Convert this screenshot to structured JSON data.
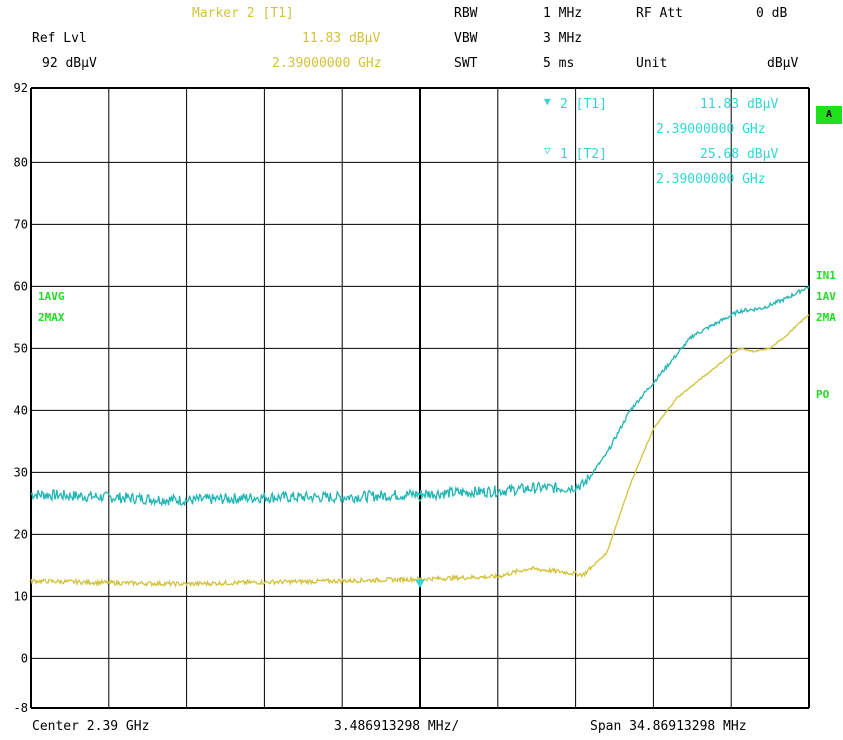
{
  "header": {
    "marker_title": "Marker 2 [T1]",
    "ref_lvl_label": "Ref Lvl",
    "ref_lvl_value": "92 dBµV",
    "marker_level": "11.83 dBµV",
    "marker_freq": "2.39000000 GHz",
    "rbw_label": "RBW",
    "rbw_value": "1 MHz",
    "vbw_label": "VBW",
    "vbw_value": "3 MHz",
    "swt_label": "SWT",
    "swt_value": "5 ms",
    "rfatt_label": "RF Att",
    "rfatt_value": "0 dB",
    "unit_label": "Unit",
    "unit_value": "dBµV"
  },
  "markers": {
    "m2_label": "2 [T1]",
    "m2_level": "11.83 dBµV",
    "m2_freq": "2.39000000 GHz",
    "m1_label": "1 [T2]",
    "m1_level": "25.68 dBµV",
    "m1_freq": "2.39000000 GHz"
  },
  "left_labels": {
    "trace1": "1AVG",
    "trace2": "2MAX"
  },
  "right_labels": {
    "badge": "A",
    "in1": "IN1",
    "av": "1AV",
    "ma": "2MA",
    "po": "PO"
  },
  "footer": {
    "center": "Center 2.39 GHz",
    "per_div": "3.486913298 MHz/",
    "span": "Span 34.86913298 MHz"
  },
  "colors": {
    "trace_max": "#22b5b5",
    "trace_avg": "#d2c23c",
    "grid": "#000000"
  },
  "chart_data": {
    "type": "line",
    "xlabel": "",
    "ylabel": "",
    "xlim": [
      0,
      10
    ],
    "ylim": [
      -8,
      92
    ],
    "yticks": [
      92,
      80,
      70,
      60,
      50,
      40,
      30,
      20,
      10,
      0,
      -8
    ],
    "series": [
      {
        "name": "2MAX",
        "x": [
          0,
          1,
          2,
          3,
          4,
          5,
          6,
          6.5,
          6.9,
          7.1,
          7.4,
          7.7,
          8.0,
          8.3,
          8.5,
          8.8,
          9.1,
          9.4,
          9.7,
          10
        ],
        "y": [
          26.5,
          26,
          25.5,
          26,
          26,
          26.5,
          27,
          27.5,
          27.5,
          28,
          33,
          40,
          44.5,
          49,
          52,
          54,
          56,
          56.5,
          58,
          60
        ],
        "noise": 0.9
      },
      {
        "name": "1AVG",
        "x": [
          0,
          1,
          2,
          3,
          4,
          5,
          6,
          6.4,
          6.8,
          7.1,
          7.4,
          7.7,
          8.0,
          8.3,
          8.6,
          8.9,
          9.1,
          9.3,
          9.5,
          9.7,
          10
        ],
        "y": [
          12.5,
          12.2,
          12,
          12.3,
          12.5,
          12.8,
          13.2,
          14.5,
          14,
          13.5,
          17,
          28,
          37,
          42,
          45,
          48,
          50,
          49.5,
          50,
          52,
          55.5
        ],
        "noise": 0.35
      }
    ],
    "markers": [
      {
        "id": 1,
        "x": 5,
        "y": 25.68
      },
      {
        "id": 2,
        "x": 5,
        "y": 11.83
      }
    ]
  }
}
